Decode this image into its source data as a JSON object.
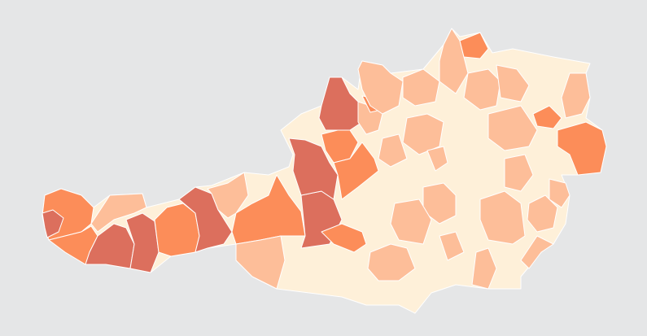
{
  "map": {
    "background": "#e5e6e7",
    "border_color": "#ffffff",
    "palette": {
      "class1": "#fef0d9",
      "class2": "#fdbe99",
      "class3": "#fc8d59",
      "class4": "#dc6f5d"
    },
    "regions": [
      {
        "cls": "class1"
      },
      {
        "cls": "class3"
      },
      {
        "cls": "class4"
      },
      {
        "cls": "class3"
      },
      {
        "cls": "class2"
      },
      {
        "cls": "class4"
      },
      {
        "cls": "class4"
      },
      {
        "cls": "class3"
      },
      {
        "cls": "class4"
      },
      {
        "cls": "class2"
      },
      {
        "cls": "class3"
      },
      {
        "cls": "class4"
      },
      {
        "cls": "class2"
      },
      {
        "cls": "class3"
      },
      {
        "cls": "class4"
      },
      {
        "cls": "class4"
      },
      {
        "cls": "class3"
      },
      {
        "cls": "class3"
      },
      {
        "cls": "class2"
      },
      {
        "cls": "class3"
      },
      {
        "cls": "class2"
      },
      {
        "cls": "class2"
      },
      {
        "cls": "class2"
      },
      {
        "cls": "class3"
      },
      {
        "cls": "class2"
      },
      {
        "cls": "class2"
      },
      {
        "cls": "class2"
      },
      {
        "cls": "class3"
      },
      {
        "cls": "class3"
      },
      {
        "cls": "class2"
      },
      {
        "cls": "class2"
      },
      {
        "cls": "class2"
      },
      {
        "cls": "class2"
      },
      {
        "cls": "class2"
      },
      {
        "cls": "class2"
      },
      {
        "cls": "class2"
      },
      {
        "cls": "class2"
      },
      {
        "cls": "class2"
      },
      {
        "cls": "class2"
      },
      {
        "cls": "class2"
      },
      {
        "cls": "class2"
      },
      {
        "cls": "class2"
      },
      {
        "cls": "class2"
      }
    ]
  }
}
